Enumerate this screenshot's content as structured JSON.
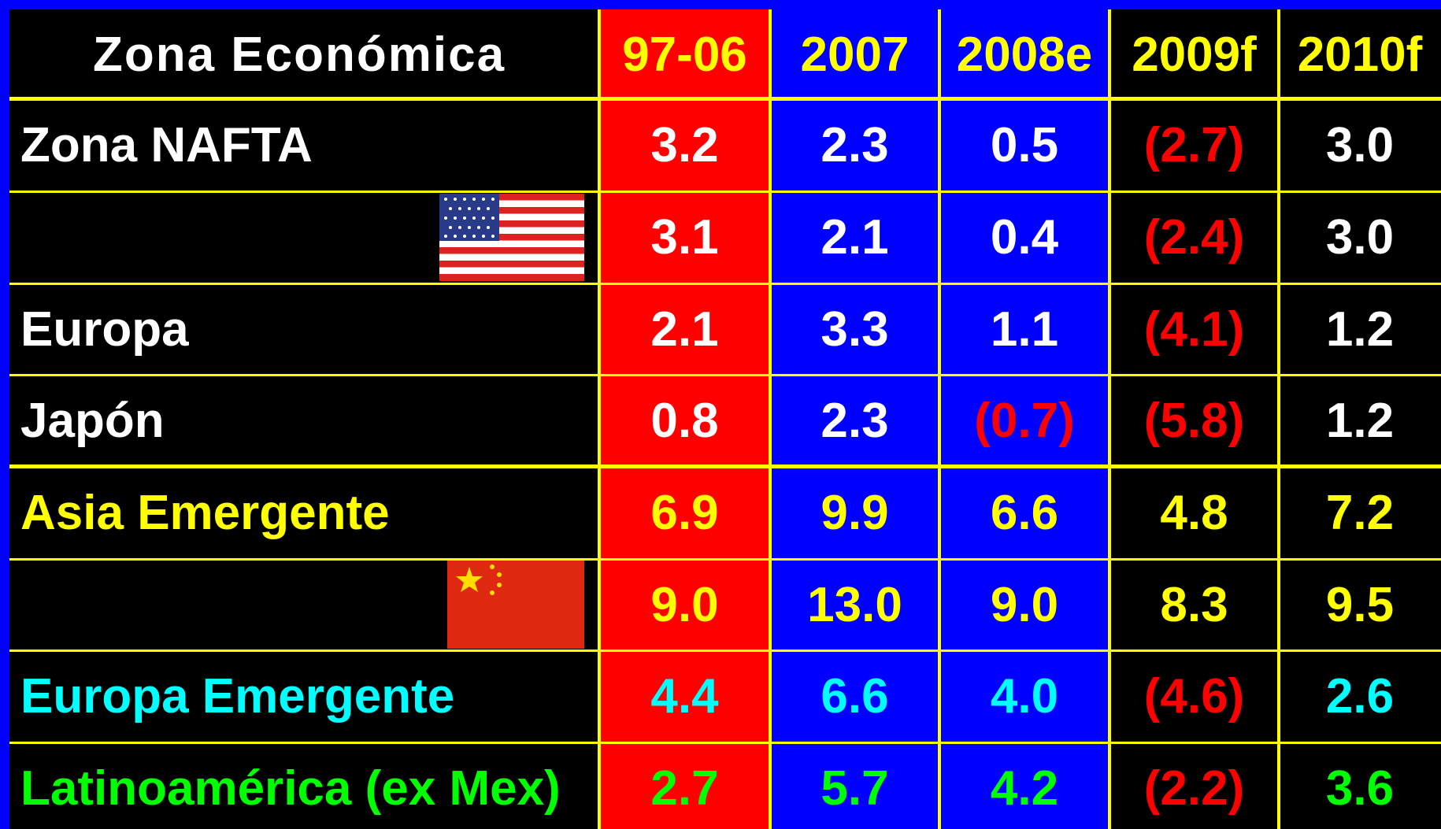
{
  "table": {
    "header": [
      "Zona Económica",
      "97-06",
      "2007",
      "2008e",
      "2009f",
      "2010f"
    ],
    "rows": [
      {
        "label": "Zona NAFTA",
        "color": "#ffffff",
        "cells": [
          "3.2",
          "2.3",
          "0.5",
          "(2.7)",
          "3.0"
        ]
      },
      {
        "label": null,
        "color": "#ffffff",
        "cells": [
          "3.1",
          "2.1",
          "0.4",
          "(2.4)",
          "3.0"
        ]
      },
      {
        "label": "Europa",
        "color": "#ffffff",
        "cells": [
          "2.1",
          "3.3",
          "1.1",
          "(4.1)",
          "1.2"
        ]
      },
      {
        "label": "Japón",
        "color": "#ffffff",
        "cells": [
          "0.8",
          "2.3",
          "(0.7)",
          "(5.8)",
          "1.2"
        ]
      },
      {
        "label": "Asia Emergente",
        "color": "#ffff00",
        "cells": [
          "6.9",
          "9.9",
          "6.6",
          "4.8",
          "7.2"
        ]
      },
      {
        "label": null,
        "color": "#ffff00",
        "cells": [
          "9.0",
          "13.0",
          "9.0",
          "8.3",
          "9.5"
        ]
      },
      {
        "label": "Europa Emergente",
        "color": "#00ffff",
        "cells": [
          "4.4",
          "6.6",
          "4.0",
          "(4.6)",
          "2.6"
        ]
      },
      {
        "label": "Latinoamérica (ex Mex)",
        "color": "#00ff00",
        "cells": [
          "2.7",
          "5.7",
          "4.2",
          "(2.2)",
          "3.6"
        ]
      }
    ],
    "negative_color": "#ff0000",
    "header_color": "#ffff00",
    "header_label_color": "#ffffff"
  }
}
